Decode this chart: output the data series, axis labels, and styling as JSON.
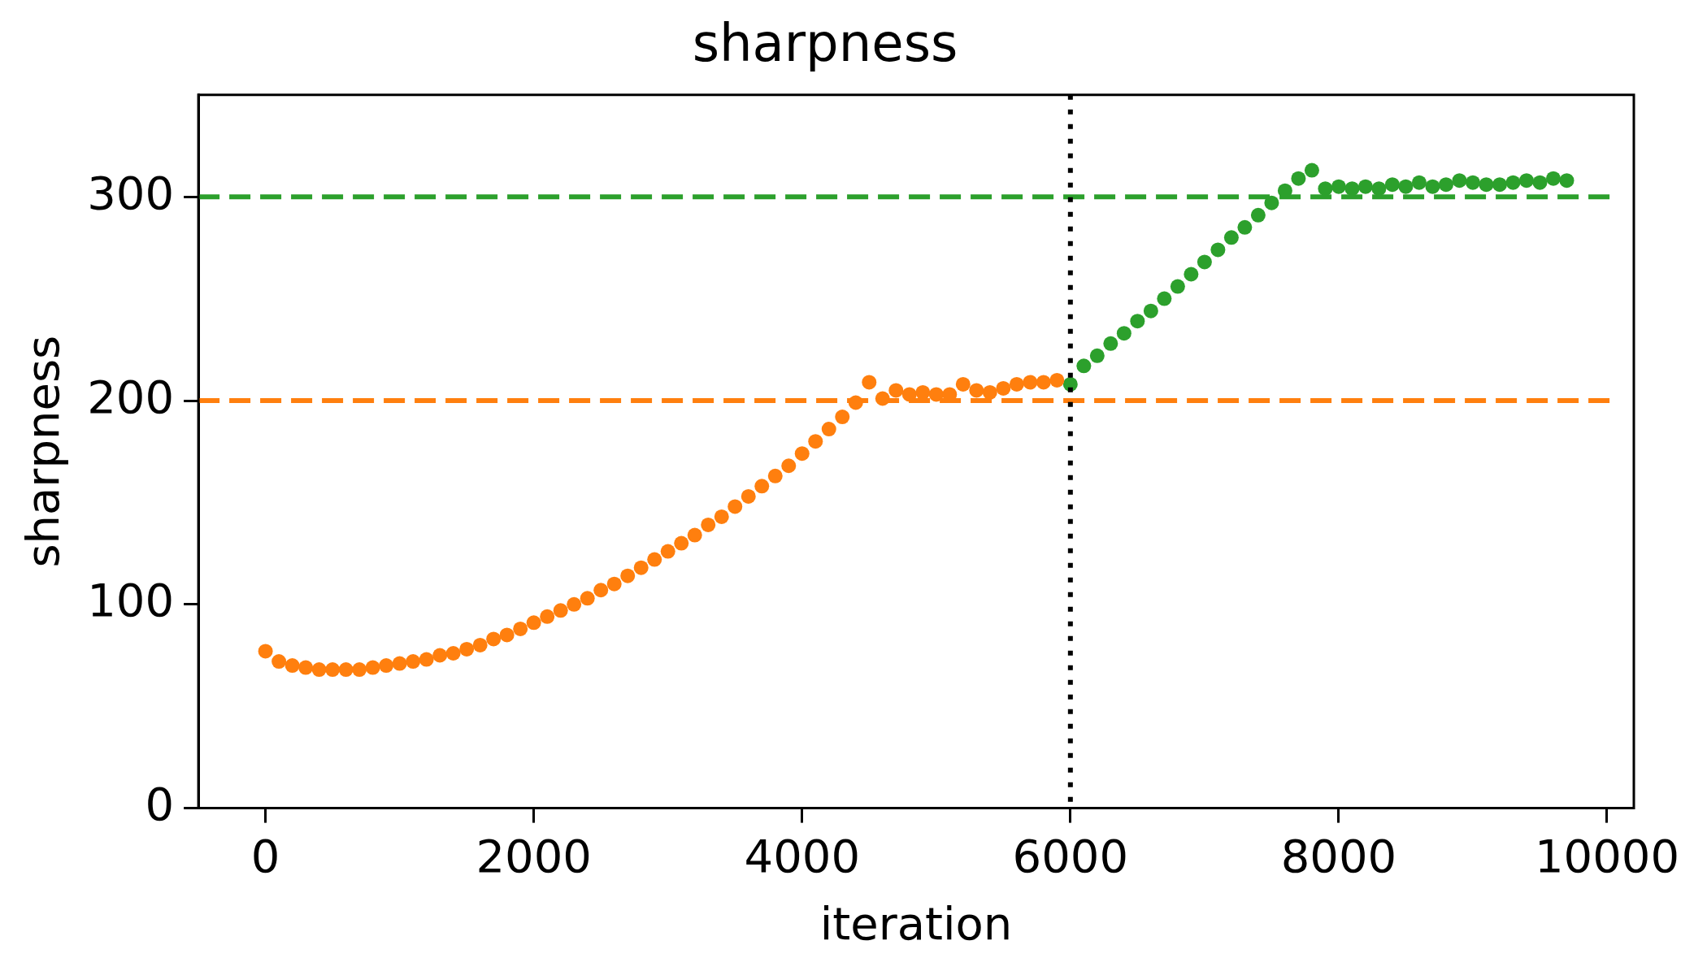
{
  "chart_data": {
    "type": "scatter",
    "title": "sharpness",
    "xlabel": "iteration",
    "ylabel": "sharpness",
    "marker": "circle",
    "grid": false,
    "legend": false,
    "xlim": [
      -500,
      10200
    ],
    "xticks": [
      0,
      2000,
      4000,
      6000,
      8000,
      10000
    ],
    "ylim": [
      0,
      350
    ],
    "yticks": [
      0,
      100,
      200,
      300
    ],
    "series": [
      {
        "color": "#ff7f0e",
        "x": [
          0,
          100,
          200,
          300,
          400,
          500,
          600,
          700,
          800,
          900,
          1000,
          1100,
          1200,
          1300,
          1400,
          1500,
          1600,
          1700,
          1800,
          1900,
          2000,
          2100,
          2200,
          2300,
          2400,
          2500,
          2600,
          2700,
          2800,
          2900,
          3000,
          3100,
          3200,
          3300,
          3400,
          3500,
          3600,
          3700,
          3800,
          3900,
          4000,
          4100,
          4200,
          4300,
          4400,
          4500,
          4600,
          4700,
          4800,
          4900,
          5000,
          5100,
          5200,
          5300,
          5400,
          5500,
          5600,
          5700,
          5800,
          5900
        ],
        "values": [
          77,
          72,
          70,
          69,
          68,
          68,
          68,
          68,
          69,
          70,
          71,
          72,
          73,
          75,
          76,
          78,
          80,
          83,
          85,
          88,
          91,
          94,
          97,
          100,
          103,
          107,
          110,
          114,
          118,
          122,
          126,
          130,
          134,
          139,
          143,
          148,
          153,
          158,
          163,
          168,
          174,
          180,
          186,
          192,
          199,
          209,
          201,
          205,
          203,
          204,
          203,
          203,
          208,
          205,
          204,
          206,
          208,
          209,
          209,
          210
        ]
      },
      {
        "color": "#2ca02c",
        "x": [
          6000,
          6100,
          6200,
          6300,
          6400,
          6500,
          6600,
          6700,
          6800,
          6900,
          7000,
          7100,
          7200,
          7300,
          7400,
          7500,
          7600,
          7700,
          7800,
          7900,
          8000,
          8100,
          8200,
          8300,
          8400,
          8500,
          8600,
          8700,
          8800,
          8900,
          9000,
          9100,
          9200,
          9300,
          9400,
          9500,
          9600,
          9700
        ],
        "values": [
          208,
          217,
          222,
          228,
          233,
          239,
          244,
          250,
          256,
          262,
          268,
          274,
          280,
          285,
          291,
          297,
          303,
          309,
          313,
          304,
          305,
          304,
          305,
          304,
          306,
          305,
          307,
          305,
          306,
          308,
          307,
          306,
          306,
          307,
          308,
          307,
          309,
          308
        ]
      }
    ],
    "ref_lines": [
      {
        "axis": "y",
        "value": 300,
        "color": "#2ca02c",
        "line_style": "dashed"
      },
      {
        "axis": "y",
        "value": 200,
        "color": "#ff7f0e",
        "line_style": "dashed"
      },
      {
        "axis": "x",
        "value": 6000,
        "color": "#000000",
        "line_style": "dotted"
      }
    ]
  }
}
